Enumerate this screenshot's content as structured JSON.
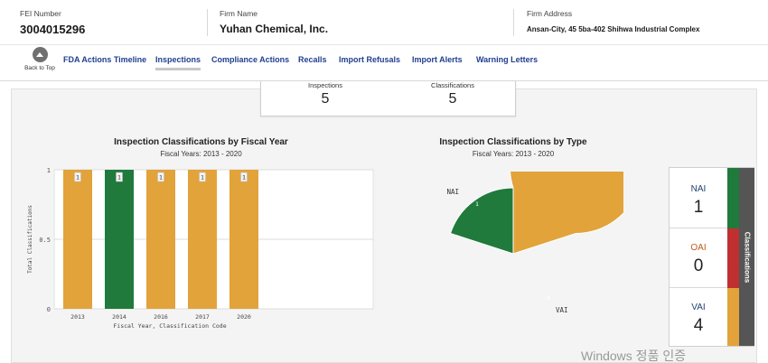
{
  "firm": {
    "fei_label": "FEI Number",
    "fei_value": "3004015296",
    "name_label": "Firm Name",
    "name_value": "Yuhan Chemical, Inc.",
    "address_label": "Firm Address",
    "address_value": "Ansan-City, 45 5ba-402 Shihwa Industrial Complex"
  },
  "nav": {
    "back_label": "Back to Top",
    "tabs": [
      "FDA Actions Timeline",
      "Inspections",
      "Compliance Actions",
      "Recalls",
      "Import Refusals",
      "Import Alerts",
      "Warning Letters"
    ],
    "active_tab": "Inspections"
  },
  "summary": {
    "inspections_label": "Inspections",
    "inspections_value": "5",
    "classifications_label": "Classifications",
    "classifications_value": "5"
  },
  "colors": {
    "nai": "#1f7a3c",
    "oai": "#c03030",
    "vai": "#e2a33a",
    "nav_link": "#1f3f8f"
  },
  "chart_data": [
    {
      "type": "bar",
      "title": "Inspection Classifications by Fiscal Year",
      "subtitle": "Fiscal Years: 2013 - 2020",
      "xlabel": "Fiscal Year, Classification Code",
      "ylabel": "Total Classifications",
      "categories": [
        "2013",
        "2014",
        "2016",
        "2017",
        "2020"
      ],
      "values": [
        1,
        1,
        1,
        1,
        1
      ],
      "classifications": [
        "VAI",
        "NAI",
        "VAI",
        "VAI",
        "VAI"
      ],
      "data_labels": [
        "1",
        "1",
        "1",
        "1",
        "1"
      ],
      "yticks": [
        "0",
        "0.5",
        "1"
      ],
      "ylim": [
        0,
        1
      ],
      "grid": true
    },
    {
      "type": "pie",
      "title": "Inspection Classifications by Type",
      "subtitle": "Fiscal Years: 2013 - 2020",
      "labels": [
        "NAI",
        "VAI"
      ],
      "values": [
        1,
        4
      ],
      "data_labels": [
        "1",
        "4"
      ]
    }
  ],
  "legend": {
    "title": "Classifications",
    "items": [
      {
        "label": "NAI",
        "value": "1"
      },
      {
        "label": "OAI",
        "value": "0"
      },
      {
        "label": "VAI",
        "value": "4"
      }
    ]
  },
  "watermark": "Windows 정품 인증"
}
